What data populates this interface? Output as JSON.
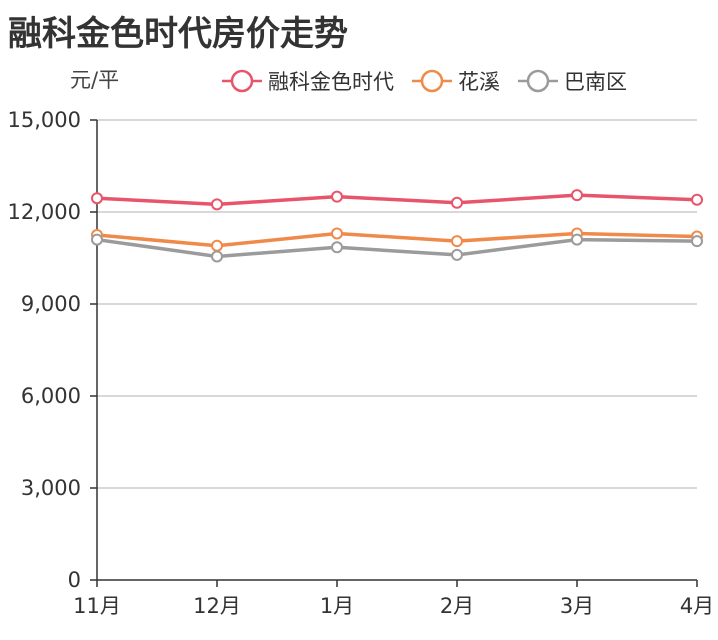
{
  "title": "融科金色时代房价走势",
  "chart_data": {
    "type": "line",
    "title": "融科金色时代房价走势",
    "ylabel": "元/平",
    "xlabel": "",
    "categories": [
      "11月",
      "12月",
      "1月",
      "2月",
      "3月",
      "4月"
    ],
    "ylim": [
      0,
      15000
    ],
    "yticks": [
      0,
      3000,
      6000,
      9000,
      12000,
      15000
    ],
    "ytick_labels": [
      "0",
      "3,000",
      "6,000",
      "9,000",
      "12,000",
      "15,000"
    ],
    "grid": true,
    "legend_position": "top-right",
    "series": [
      {
        "name": "融科金色时代",
        "color": "#e8556b",
        "values": [
          12450,
          12250,
          12500,
          12300,
          12550,
          12400
        ]
      },
      {
        "name": "花溪",
        "color": "#f08a4b",
        "values": [
          11250,
          10900,
          11300,
          11050,
          11300,
          11200
        ]
      },
      {
        "name": "巴南区",
        "color": "#9b9b9b",
        "values": [
          11100,
          10550,
          10850,
          10600,
          11100,
          11050
        ]
      }
    ]
  }
}
